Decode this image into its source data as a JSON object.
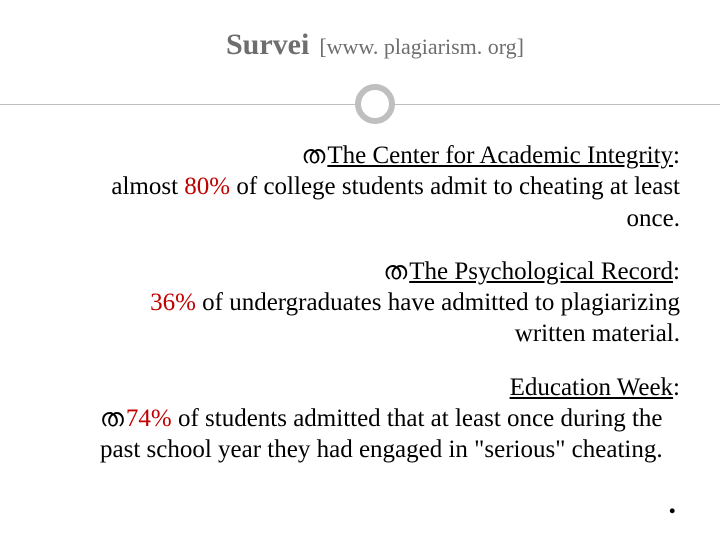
{
  "title": {
    "main": "Survei",
    "sub": "[www. plagiarism. org]"
  },
  "colors": {
    "title_color": "#6e6e6e",
    "divider_color": "#bfbfbf",
    "highlight_color": "#c00000",
    "text_color": "#000000",
    "background": "#ffffff"
  },
  "bullet_glyph": "ത",
  "blocks": [
    {
      "heading": "The Center for Academic Integrity",
      "heading_suffix": ":",
      "body_pre": "almost ",
      "highlight": "80%",
      "body_post": " of college students admit to cheating at least once.",
      "has_bullet": true
    },
    {
      "heading": "The Psychological Record",
      "heading_suffix": ":",
      "body_pre": "",
      "highlight": "36%",
      "body_post": " of undergraduates have admitted to plagiarizing written material.",
      "has_bullet": true
    },
    {
      "heading": "Education Week",
      "heading_suffix": ":",
      "body_pre": "",
      "highlight": "74%",
      "body_post": " of students admitted that at least once during the past school year they had engaged in \"serious\" cheating.",
      "has_bullet": true,
      "bullet_on_body": true
    }
  ],
  "footer_dot": "."
}
